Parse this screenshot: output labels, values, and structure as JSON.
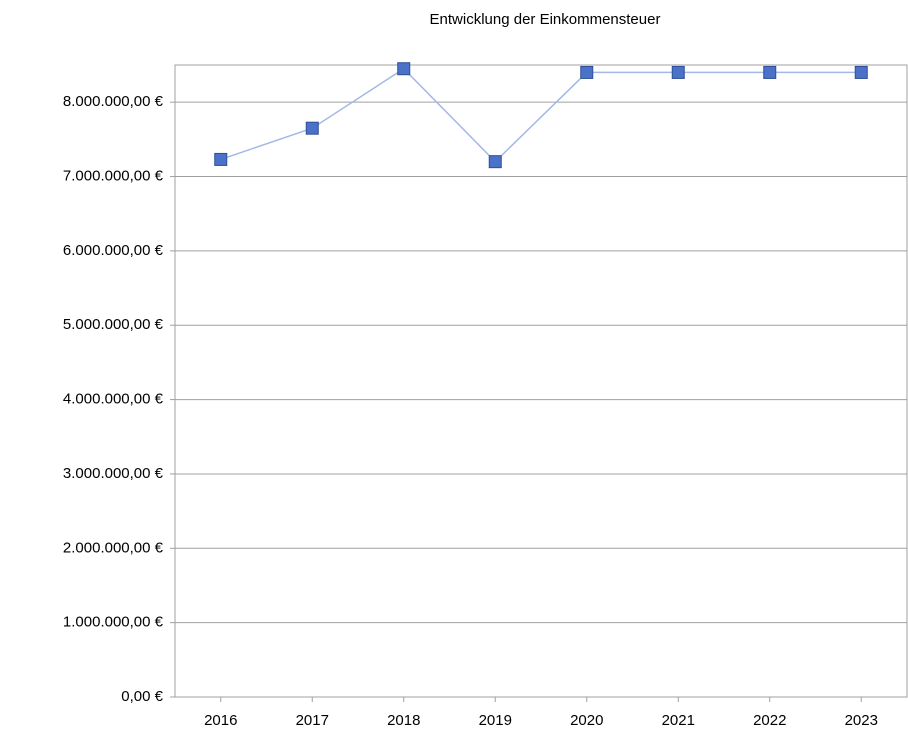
{
  "chart_data": {
    "type": "line",
    "title": "Entwicklung der Einkommensteuer",
    "categories": [
      "2016",
      "2017",
      "2018",
      "2019",
      "2020",
      "2021",
      "2022",
      "2023"
    ],
    "series": [
      {
        "name": "Einkommensteuer",
        "color": "#4a72c9",
        "line_color": "#a3b8e8",
        "values": [
          7230000,
          7650000,
          8450000,
          7200000,
          8400000,
          8400000,
          8400000,
          8400000
        ]
      }
    ],
    "ylim": [
      0,
      8500000
    ],
    "yticks": [
      {
        "value": 0,
        "label": "0,00 €"
      },
      {
        "value": 1000000,
        "label": "1.000.000,00 €"
      },
      {
        "value": 2000000,
        "label": "2.000.000,00 €"
      },
      {
        "value": 3000000,
        "label": "3.000.000,00 €"
      },
      {
        "value": 4000000,
        "label": "4.000.000,00 €"
      },
      {
        "value": 5000000,
        "label": "5.000.000,00 €"
      },
      {
        "value": 6000000,
        "label": "6.000.000,00 €"
      },
      {
        "value": 7000000,
        "label": "7.000.000,00 €"
      },
      {
        "value": 8000000,
        "label": "8.000.000,00 €"
      }
    ],
    "grid": true
  }
}
